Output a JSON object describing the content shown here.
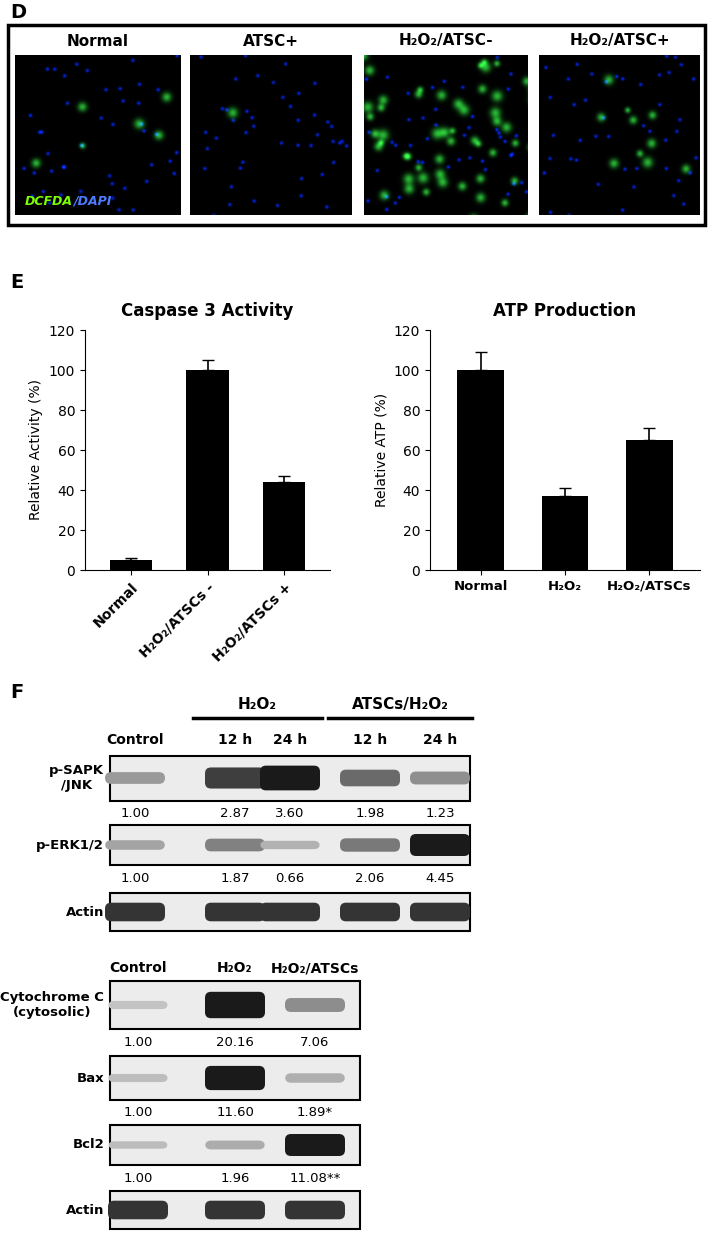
{
  "panel_D": {
    "label": "D",
    "columns": [
      "Normal",
      "ATSC+",
      "H₂O₂/ATSC-",
      "H₂O₂/ATSC+"
    ],
    "stain_label": "DCFDA/DAPI"
  },
  "panel_E": {
    "label": "E"
  },
  "chart_data": [
    {
      "type": "bar",
      "title": "Caspase 3 Activity",
      "y_label": "Relative Activity (%)",
      "categories": [
        "Normal",
        "H₂O₂/ATSCs -",
        "H₂O₂/ATSCs +"
      ],
      "values": [
        5,
        100,
        44
      ],
      "errors": [
        1,
        5,
        3
      ],
      "color": "#000000",
      "ylim": [
        0,
        120
      ],
      "yticks": [
        0,
        20,
        40,
        60,
        80,
        100,
        120
      ]
    },
    {
      "type": "bar",
      "title": "ATP Production",
      "y_label": "Relative ATP (%)",
      "categories": [
        "Normal",
        "H₂O₂",
        "H₂O₂/ATSCs"
      ],
      "values": [
        100,
        37,
        65
      ],
      "errors": [
        9,
        4,
        6
      ],
      "color": "#000000",
      "ylim": [
        0,
        120
      ],
      "yticks": [
        0,
        20,
        40,
        60,
        80,
        100,
        120
      ]
    }
  ],
  "panel_F": {
    "label": "F",
    "blots": [
      {
        "lanes": [
          "Control",
          "12 h",
          "24 h",
          "12 h",
          "24 h"
        ],
        "groups": [
          "H₂O₂",
          "ATSCs/H₂O₂"
        ],
        "rows": [
          {
            "name": "p-SAPK\n/JNK",
            "quant": [
              "1.00",
              "2.87",
              "3.60",
              "1.98",
              "1.23"
            ]
          },
          {
            "name": "p-ERK1/2",
            "quant": [
              "1.00",
              "1.87",
              "0.66",
              "2.06",
              "4.45"
            ]
          },
          {
            "name": "Actin"
          }
        ]
      },
      {
        "lanes": [
          "Control",
          "H₂O₂",
          "H₂O₂/ATSCs"
        ],
        "rows": [
          {
            "name": "Cytochrome C\n(cytosolic)",
            "quant": [
              "1.00",
              "20.16",
              "7.06"
            ]
          },
          {
            "name": "Bax",
            "quant": [
              "1.00",
              "11.60",
              "1.89*"
            ]
          },
          {
            "name": "Bcl2",
            "quant": [
              "1.00",
              "1.96",
              "11.08**"
            ]
          },
          {
            "name": "Actin"
          }
        ]
      }
    ]
  }
}
